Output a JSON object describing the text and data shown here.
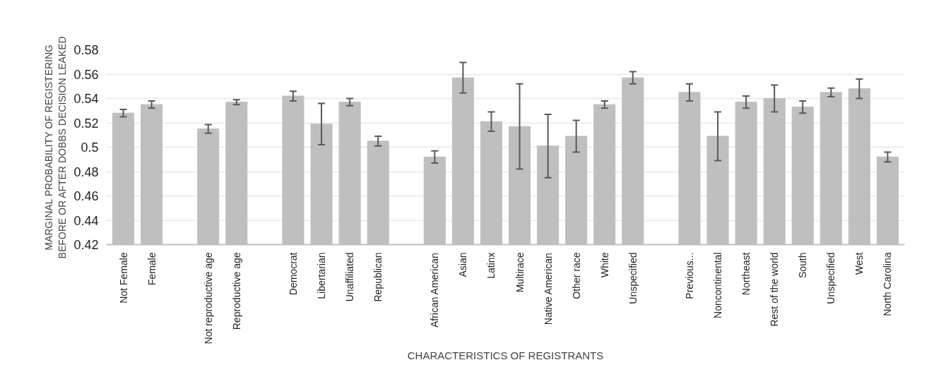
{
  "chart_data": {
    "type": "bar",
    "xlabel": "CHARACTERISTICS OF REGISTRANTS",
    "ylabel": "MARGINAL PROBABILITY OF REGISTERING\nBEFORE OR AFTER DOBBS DECISION LEAKED",
    "categories": [
      "Not Female",
      "Female",
      null,
      "Not reproductive age",
      "Reproductive age",
      null,
      "Democrat",
      "Libertarian",
      "Unaffiliated",
      "Republican",
      null,
      "African American",
      "Asian",
      "Latinx",
      "Multirace",
      "Native American",
      "Other race",
      "White",
      "Unspecified",
      null,
      "Previous...",
      "Noncontinental",
      "Northeast",
      "Rest of the world",
      "South",
      "Unspecified",
      "West",
      "North Carolina"
    ],
    "values": [
      0.528,
      0.535,
      null,
      0.515,
      0.537,
      null,
      0.542,
      0.519,
      0.537,
      0.505,
      null,
      0.492,
      0.557,
      0.521,
      0.517,
      0.501,
      0.509,
      0.535,
      0.557,
      null,
      0.545,
      0.509,
      0.537,
      0.54,
      0.533,
      0.545,
      0.548,
      0.492
    ],
    "errors": [
      0.003,
      0.003,
      null,
      0.0035,
      0.002,
      null,
      0.004,
      0.017,
      0.003,
      0.004,
      null,
      0.005,
      0.0125,
      0.008,
      0.035,
      0.026,
      0.013,
      0.003,
      0.005,
      null,
      0.007,
      0.02,
      0.005,
      0.011,
      0.005,
      0.0035,
      0.008,
      0.004
    ],
    "color": "#bfbfbf",
    "ylim": [
      0.42,
      0.58
    ],
    "yticks": [
      0.42,
      0.44,
      0.46,
      0.48,
      0.5,
      0.52,
      0.54,
      0.56,
      0.58
    ],
    "grid": "y"
  }
}
